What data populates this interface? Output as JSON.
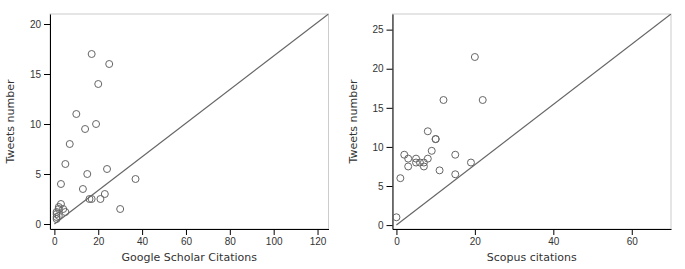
{
  "chart_data": [
    {
      "type": "scatter",
      "xlabel": "Google Scholar Citations",
      "ylabel": "Tweets number",
      "xlim": [
        -2,
        125
      ],
      "ylim": [
        -0.5,
        21
      ],
      "xticks": [
        0,
        20,
        40,
        60,
        80,
        100,
        120
      ],
      "yticks": [
        0,
        5,
        10,
        15,
        20
      ],
      "grid": false,
      "series": [
        {
          "type": "scatter",
          "color": "#666666",
          "x": [
            1,
            1,
            1,
            1,
            2,
            2,
            2,
            3,
            3,
            4,
            5,
            5,
            7,
            10,
            13,
            14,
            15,
            16,
            17,
            17,
            19,
            20,
            21,
            23,
            24,
            25,
            30,
            37
          ],
          "values": [
            0.5,
            0.7,
            1.0,
            1.2,
            0.8,
            1.5,
            1.7,
            2.0,
            4.0,
            1.5,
            1.2,
            6.0,
            8.0,
            11.0,
            3.5,
            9.5,
            5.0,
            2.5,
            17.0,
            2.5,
            10.0,
            14.0,
            2.5,
            3.0,
            5.5,
            16.0,
            1.5,
            4.5
          ]
        },
        {
          "type": "line",
          "color": "#666666",
          "x": [
            0,
            125
          ],
          "values": [
            0,
            21.0
          ]
        }
      ]
    },
    {
      "type": "scatter",
      "xlabel": "Scopus citations",
      "ylabel": "Tweets number",
      "xlim": [
        -1,
        70
      ],
      "ylim": [
        -0.5,
        27
      ],
      "xticks": [
        0,
        20,
        40,
        60
      ],
      "yticks": [
        0,
        5,
        10,
        15,
        20,
        25
      ],
      "grid": false,
      "series": [
        {
          "type": "scatter",
          "color": "#666666",
          "x": [
            0,
            1,
            2,
            3,
            3,
            5,
            5,
            6,
            7,
            7,
            8,
            8,
            9,
            10,
            10,
            11,
            12,
            15,
            15,
            19,
            20,
            22
          ],
          "values": [
            1.0,
            6.0,
            9.0,
            7.5,
            8.5,
            8.0,
            8.5,
            8.0,
            7.5,
            8.0,
            12.0,
            8.5,
            9.5,
            11.0,
            11.0,
            7.0,
            16.0,
            6.5,
            9.0,
            8.0,
            21.5,
            16.0
          ]
        },
        {
          "type": "line",
          "color": "#666666",
          "x": [
            0,
            70
          ],
          "values": [
            0,
            27.0
          ]
        }
      ]
    }
  ]
}
